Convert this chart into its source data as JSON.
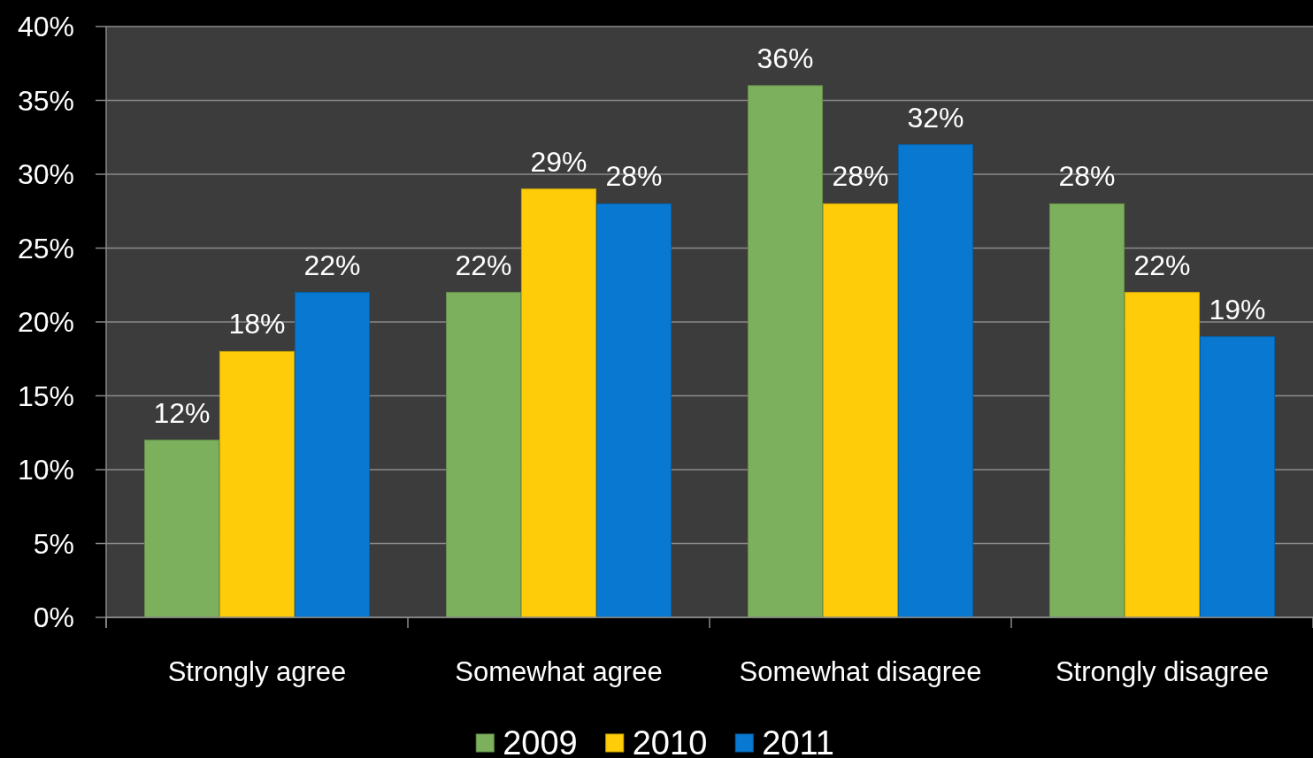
{
  "chart_data": {
    "type": "bar",
    "categories": [
      "Strongly agree",
      "Somewhat agree",
      "Somewhat disagree",
      "Strongly disagree"
    ],
    "series": [
      {
        "name": "2009",
        "color": "#7db05c",
        "values": [
          12,
          22,
          36,
          28
        ],
        "value_labels": [
          "12%",
          "22%",
          "36%",
          "28%"
        ]
      },
      {
        "name": "2010",
        "color": "#ffcc0a",
        "values": [
          18,
          29,
          28,
          22
        ],
        "value_labels": [
          "18%",
          "29%",
          "28%",
          "22%"
        ]
      },
      {
        "name": "2011",
        "color": "#0878d0",
        "values": [
          22,
          28,
          32,
          19
        ],
        "value_labels": [
          "22%",
          "28%",
          "32%",
          "19%"
        ]
      }
    ],
    "ylim": [
      0,
      40
    ],
    "yticks": [
      {
        "value": 0,
        "label": "0%"
      },
      {
        "value": 5,
        "label": "5%"
      },
      {
        "value": 10,
        "label": "10%"
      },
      {
        "value": 15,
        "label": "15%"
      },
      {
        "value": 20,
        "label": "20%"
      },
      {
        "value": 25,
        "label": "25%"
      },
      {
        "value": 30,
        "label": "30%"
      },
      {
        "value": 35,
        "label": "35%"
      },
      {
        "value": 40,
        "label": "40%"
      }
    ],
    "grid": "y",
    "legend": "bottom"
  }
}
